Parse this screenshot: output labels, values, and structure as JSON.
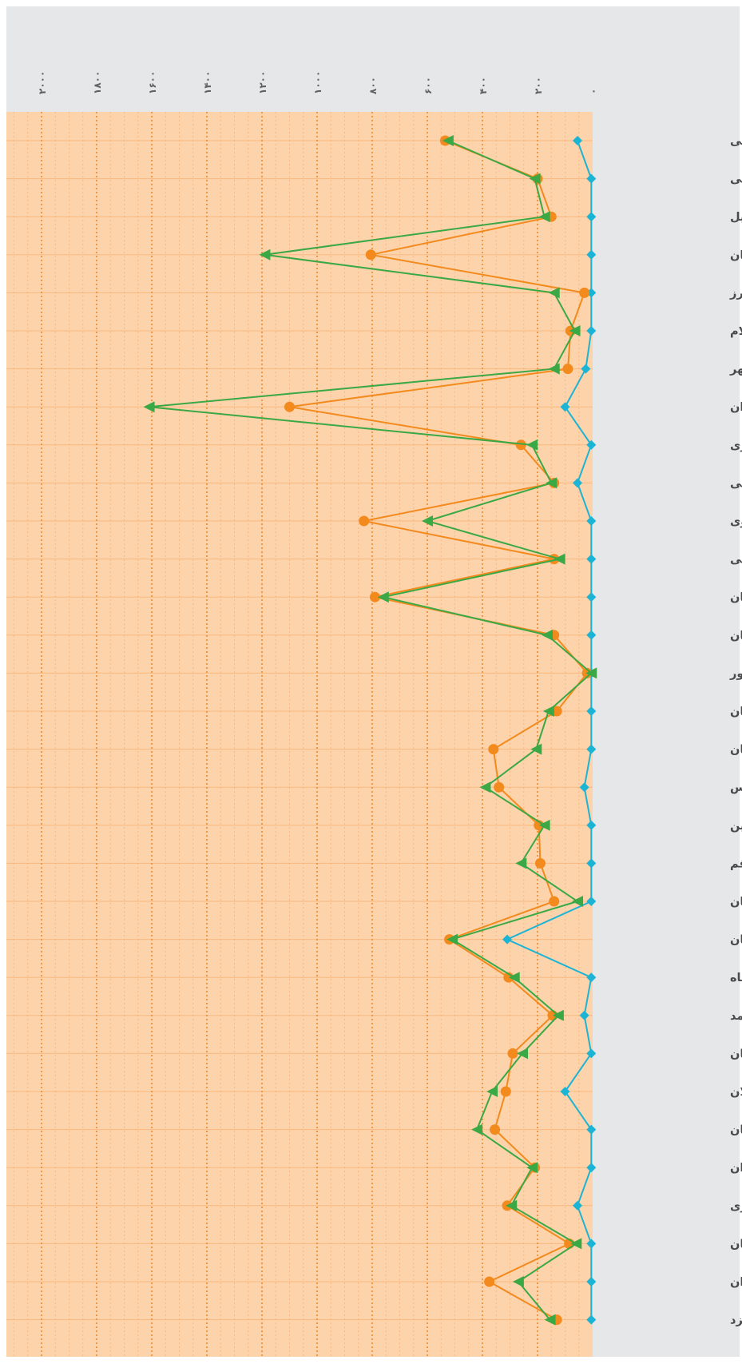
{
  "chart_data": {
    "type": "line",
    "orientation": "horizontal",
    "categories": [
      "آذربایجان شرقی",
      "آذربایجان غربی",
      "اردبیل",
      "اصفهان",
      "البرز",
      "ایلام",
      "بوشهر",
      "تهران",
      "چهارمحال و بختیاری",
      "خراسان جنوبی",
      "خراسان رضوی",
      "خراسان شمالی",
      "خوزستان",
      "زنجان",
      "سازمان بهزیستی کشور",
      "سمنان",
      "سیستان و بلوچستان",
      "فارس",
      "قزوین",
      "قم",
      "کردستان",
      "کرمان",
      "کرمانشاه",
      "کهکیلویه و بویراحمد",
      "گلستان",
      "گیلان",
      "لرستان",
      "مازندران",
      "مرکزی",
      "هرمزگان",
      "همدان",
      "یزد"
    ],
    "x_ticks": [
      "۰",
      "۲۰۰",
      "۴۰۰",
      "۶۰۰",
      "۸۰۰",
      "۱۰۰۰",
      "۱۲۰۰",
      "۱۴۰۰",
      "۱۶۰۰",
      "۱۸۰۰",
      "۲۰۰۰"
    ],
    "xlim": [
      0,
      2100
    ],
    "grid": true,
    "series": [
      {
        "marker": "diamond",
        "color": "#1cb4d4",
        "values": [
          55,
          5,
          5,
          5,
          5,
          5,
          25,
          100,
          5,
          55,
          5,
          5,
          5,
          5,
          5,
          5,
          5,
          30,
          5,
          5,
          5,
          310,
          5,
          30,
          5,
          100,
          5,
          5,
          55,
          5,
          5,
          5
        ]
      },
      {
        "marker": "circle",
        "color": "#f28a1e",
        "values": [
          535,
          200,
          150,
          805,
          30,
          80,
          90,
          1100,
          260,
          140,
          830,
          140,
          790,
          140,
          20,
          130,
          360,
          340,
          195,
          190,
          140,
          520,
          305,
          145,
          290,
          315,
          355,
          210,
          310,
          85,
          375,
          130
        ]
      },
      {
        "marker": "triangle",
        "color": "#3aa845",
        "values": [
          525,
          210,
          175,
          1190,
          140,
          65,
          140,
          1610,
          220,
          150,
          600,
          120,
          760,
          165,
          5,
          160,
          205,
          390,
          175,
          260,
          55,
          510,
          285,
          125,
          255,
          365,
          420,
          220,
          295,
          60,
          270,
          155
        ]
      }
    ]
  }
}
